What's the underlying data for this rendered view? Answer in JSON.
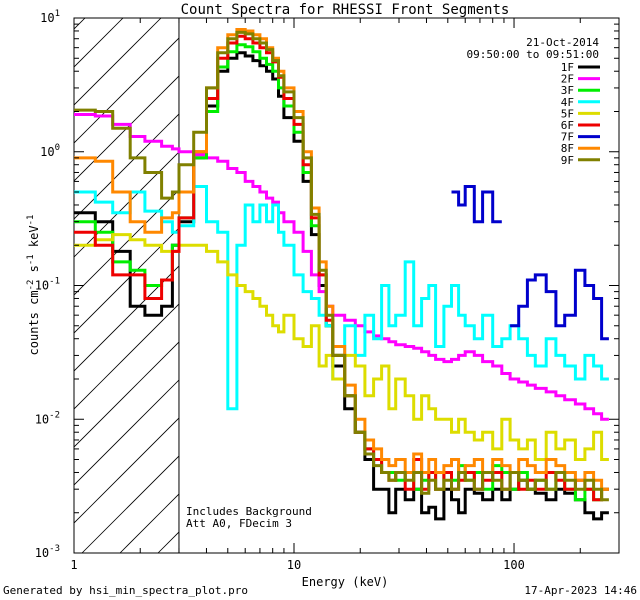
{
  "chart_data": {
    "type": "line",
    "title": "Count Spectra for RHESSI Front Segments",
    "xlabel": "Energy (keV)",
    "ylabel_parts": {
      "base": "counts cm",
      "exp1": "-2",
      "s": " s",
      "exp2": "-1",
      "kev": " keV",
      "exp3": "-1"
    },
    "xscale": "log",
    "yscale": "log",
    "xlim": [
      1,
      300
    ],
    "ylim": [
      0.001,
      10
    ],
    "x_ticks": [
      {
        "v": 1,
        "label": "1"
      },
      {
        "v": 10,
        "label": "10"
      },
      {
        "v": 100,
        "label": "100"
      }
    ],
    "y_ticks": [
      {
        "v": 0.001,
        "base": "10",
        "exp": "-3"
      },
      {
        "v": 0.01,
        "base": "10",
        "exp": "-2"
      },
      {
        "v": 0.1,
        "base": "10",
        "exp": "-1"
      },
      {
        "v": 1,
        "base": "10",
        "exp": "0"
      },
      {
        "v": 10,
        "base": "10",
        "exp": "1"
      }
    ],
    "hatched_region_kev": [
      1,
      3
    ],
    "annotations": {
      "date": "21-Oct-2014",
      "time_range": "09:50:00 to 09:51:00",
      "background": "Includes Background",
      "atten": "Att A0, FDecim 3"
    },
    "bin_edges": [
      1,
      1.25,
      1.5,
      1.8,
      2.1,
      2.5,
      2.8,
      3,
      3.5,
      4,
      4.5,
      5,
      5.5,
      6,
      6.5,
      7,
      7.5,
      8,
      8.5,
      9,
      10,
      11,
      12,
      13,
      14,
      15,
      17,
      19,
      21,
      23,
      25,
      27,
      29,
      32,
      35,
      38,
      41,
      44,
      48,
      52,
      56,
      60,
      66,
      72,
      80,
      88,
      96,
      105,
      115,
      125,
      140,
      155,
      170,
      190,
      210,
      230,
      250,
      270,
      300
    ],
    "series": [
      {
        "name": "1F",
        "color": "#000000",
        "values": [
          0.35,
          0.3,
          0.18,
          0.07,
          0.06,
          0.07,
          0.2,
          0.3,
          0.9,
          2.2,
          4,
          5,
          5.5,
          5.2,
          4.8,
          4.4,
          4,
          3.5,
          2.6,
          1.8,
          1.2,
          0.6,
          0.24,
          0.1,
          0.05,
          0.025,
          0.012,
          0.008,
          0.005,
          0.003,
          0.003,
          0.002,
          0.003,
          0.0025,
          0.003,
          0.002,
          0.0022,
          0.0018,
          0.003,
          0.0025,
          0.002,
          0.003,
          0.0028,
          0.0025,
          0.003,
          0.0025,
          0.003,
          0.0035,
          0.003,
          0.0028,
          0.0025,
          0.003,
          0.0028,
          0.0025,
          0.002,
          0.0018,
          0.002
        ]
      },
      {
        "name": "2F",
        "color": "#ff00ff",
        "values": [
          1.9,
          1.85,
          1.6,
          1.3,
          1.2,
          1.1,
          1.05,
          1,
          0.95,
          0.9,
          0.85,
          0.75,
          0.7,
          0.6,
          0.55,
          0.5,
          0.45,
          0.42,
          0.35,
          0.3,
          0.25,
          0.18,
          0.12,
          0.09,
          0.07,
          0.06,
          0.055,
          0.05,
          0.045,
          0.042,
          0.04,
          0.038,
          0.036,
          0.035,
          0.034,
          0.032,
          0.03,
          0.028,
          0.027,
          0.028,
          0.03,
          0.032,
          0.03,
          0.027,
          0.025,
          0.022,
          0.02,
          0.019,
          0.018,
          0.017,
          0.016,
          0.015,
          0.014,
          0.013,
          0.012,
          0.011,
          0.01
        ]
      },
      {
        "name": "3F",
        "color": "#00ee00",
        "values": [
          0.3,
          0.25,
          0.15,
          0.13,
          0.1,
          0.11,
          0.2,
          0.32,
          0.9,
          2,
          4.3,
          5.6,
          6.3,
          6.1,
          5.6,
          5,
          4.5,
          4,
          3,
          2.2,
          1.4,
          0.7,
          0.28,
          0.12,
          0.05,
          0.03,
          0.015,
          0.008,
          0.006,
          0.005,
          0.004,
          0.004,
          0.0035,
          0.004,
          0.003,
          0.0035,
          0.004,
          0.003,
          0.004,
          0.0035,
          0.0045,
          0.0035,
          0.004,
          0.003,
          0.0045,
          0.004,
          0.003,
          0.004,
          0.003,
          0.0035,
          0.003,
          0.004,
          0.003,
          0.0025,
          0.003,
          0.0025,
          0.003
        ]
      },
      {
        "name": "4F",
        "color": "#00ffff",
        "values": [
          0.5,
          0.42,
          0.35,
          0.5,
          0.36,
          0.3,
          0.25,
          0.28,
          0.55,
          0.3,
          0.25,
          0.012,
          0.2,
          0.4,
          0.3,
          0.4,
          0.3,
          0.4,
          0.25,
          0.2,
          0.12,
          0.09,
          0.08,
          0.06,
          0.05,
          0.02,
          0.05,
          0.03,
          0.06,
          0.04,
          0.1,
          0.05,
          0.06,
          0.15,
          0.05,
          0.08,
          0.1,
          0.035,
          0.07,
          0.1,
          0.06,
          0.05,
          0.04,
          0.06,
          0.035,
          0.04,
          0.05,
          0.04,
          0.03,
          0.025,
          0.04,
          0.03,
          0.025,
          0.02,
          0.03,
          0.025,
          0.02
        ]
      },
      {
        "name": "5F",
        "color": "#dddd00",
        "values": [
          0.2,
          0.22,
          0.24,
          0.22,
          0.2,
          0.18,
          0.18,
          0.2,
          0.2,
          0.18,
          0.15,
          0.12,
          0.1,
          0.09,
          0.08,
          0.07,
          0.06,
          0.05,
          0.045,
          0.06,
          0.04,
          0.035,
          0.05,
          0.025,
          0.03,
          0.02,
          0.03,
          0.025,
          0.015,
          0.02,
          0.025,
          0.012,
          0.02,
          0.015,
          0.01,
          0.015,
          0.012,
          0.01,
          0.01,
          0.008,
          0.01,
          0.008,
          0.007,
          0.008,
          0.006,
          0.01,
          0.007,
          0.006,
          0.007,
          0.005,
          0.008,
          0.006,
          0.007,
          0.005,
          0.006,
          0.008,
          0.005
        ]
      },
      {
        "name": "6F",
        "color": "#ee0000",
        "values": [
          0.25,
          0.2,
          0.12,
          0.12,
          0.08,
          0.11,
          0.18,
          0.32,
          1,
          2.5,
          5,
          6.5,
          7.3,
          7,
          6.5,
          6,
          5.5,
          4.7,
          3.6,
          2.5,
          1.6,
          0.8,
          0.32,
          0.12,
          0.055,
          0.03,
          0.015,
          0.008,
          0.006,
          0.005,
          0.004,
          0.0035,
          0.004,
          0.003,
          0.005,
          0.003,
          0.004,
          0.003,
          0.004,
          0.003,
          0.0035,
          0.004,
          0.003,
          0.0035,
          0.004,
          0.003,
          0.004,
          0.003,
          0.0035,
          0.003,
          0.004,
          0.0035,
          0.003,
          0.0035,
          0.003,
          0.0025,
          0.003
        ]
      },
      {
        "name": "7F",
        "color": "#0000cc",
        "values": [
          null,
          null,
          null,
          null,
          null,
          null,
          null,
          null,
          null,
          null,
          null,
          null,
          null,
          null,
          null,
          null,
          null,
          null,
          null,
          null,
          null,
          null,
          null,
          null,
          null,
          null,
          null,
          null,
          null,
          null,
          null,
          null,
          null,
          null,
          null,
          null,
          null,
          null,
          null,
          0.5,
          0.4,
          0.55,
          0.3,
          0.5,
          0.3,
          null,
          0.05,
          0.07,
          0.11,
          0.12,
          0.09,
          0.05,
          0.06,
          0.13,
          0.1,
          0.08,
          0.04
        ]
      },
      {
        "name": "8F",
        "color": "#ff8800",
        "values": [
          0.9,
          0.85,
          0.5,
          0.3,
          0.25,
          0.32,
          0.35,
          0.5,
          1,
          3,
          6,
          7.5,
          8.2,
          8,
          7.5,
          7,
          6,
          5,
          4,
          3,
          2,
          1,
          0.38,
          0.15,
          0.07,
          0.035,
          0.018,
          0.01,
          0.007,
          0.006,
          0.005,
          0.0045,
          0.005,
          0.004,
          0.0055,
          0.004,
          0.005,
          0.004,
          0.0045,
          0.005,
          0.004,
          0.0045,
          0.005,
          0.004,
          0.005,
          0.0045,
          0.004,
          0.005,
          0.0045,
          0.004,
          0.005,
          0.0045,
          0.004,
          0.0035,
          0.004,
          0.0035,
          0.003
        ]
      },
      {
        "name": "9F",
        "color": "#808000",
        "values": [
          2.05,
          2,
          1.5,
          0.9,
          0.7,
          0.45,
          0.5,
          0.8,
          1.4,
          3,
          5.5,
          7,
          7.8,
          7.6,
          7,
          6.5,
          5.8,
          4.8,
          3.7,
          2.8,
          1.8,
          0.9,
          0.34,
          0.13,
          0.06,
          0.03,
          0.015,
          0.008,
          0.0055,
          0.0045,
          0.004,
          0.0035,
          0.004,
          0.0035,
          0.004,
          0.0028,
          0.0035,
          0.003,
          0.0035,
          0.003,
          0.004,
          0.0035,
          0.003,
          0.004,
          0.0035,
          0.003,
          0.004,
          0.0035,
          0.003,
          0.0035,
          0.003,
          0.004,
          0.0035,
          0.003,
          0.0035,
          0.003,
          0.0025
        ]
      }
    ]
  },
  "footer": {
    "generated_by": "Generated by hsi_min_spectra_plot.pro",
    "timestamp": "17-Apr-2023 14:46"
  }
}
